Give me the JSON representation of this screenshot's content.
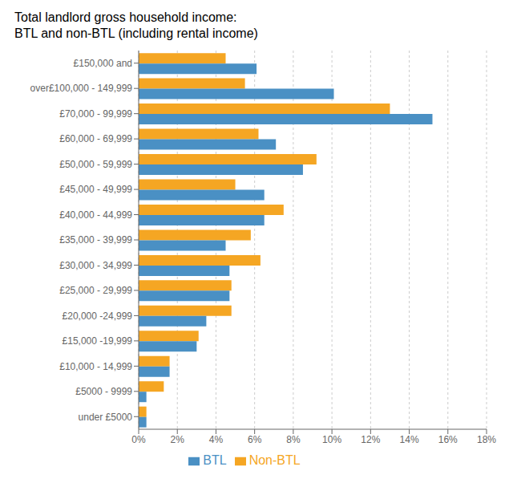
{
  "chart_data": {
    "type": "bar",
    "orientation": "horizontal",
    "title": "Total landlord gross household income:\nBTL and non-BTL (including rental income)",
    "categories": [
      "£150,000 and",
      "over£100,000 - 149,999",
      "£70,000 - 99,999",
      "£60,000 - 69,999",
      "£50,000 - 59,999",
      "£45,000 - 49,999",
      "£40,000 - 44,999",
      "£35,000 - 39,999",
      "£30,000 - 34,999",
      "£25,000 - 29,999",
      "£20,000 -24,999",
      "£15,000 -19,999",
      "£10,000 - 14,999",
      "£5000 - 9999",
      "under £5000"
    ],
    "series": [
      {
        "name": "Non-BTL",
        "color": "#F5A623",
        "values": [
          4.5,
          5.5,
          13.0,
          6.2,
          9.2,
          5.0,
          7.5,
          5.8,
          6.3,
          4.8,
          4.8,
          3.1,
          1.6,
          1.3,
          0.4
        ]
      },
      {
        "name": "BTL",
        "color": "#4A90C4",
        "values": [
          6.1,
          10.1,
          15.2,
          7.1,
          8.5,
          6.5,
          6.5,
          4.5,
          4.7,
          4.7,
          3.5,
          3.0,
          1.6,
          0.4,
          0.4
        ]
      }
    ],
    "xlim": [
      0,
      18
    ],
    "xticks": [
      {
        "value": 0,
        "label": "0%"
      },
      {
        "value": 2,
        "label": "2%"
      },
      {
        "value": 4,
        "label": "4%"
      },
      {
        "value": 6,
        "label": "6%"
      },
      {
        "value": 8,
        "label": "8%"
      },
      {
        "value": 10,
        "label": "10%"
      },
      {
        "value": 12,
        "label": "12%"
      },
      {
        "value": 14,
        "label": "14%"
      },
      {
        "value": 16,
        "label": "16%"
      },
      {
        "value": 18,
        "label": "18%"
      }
    ],
    "grid": true,
    "legend": "bottom"
  }
}
